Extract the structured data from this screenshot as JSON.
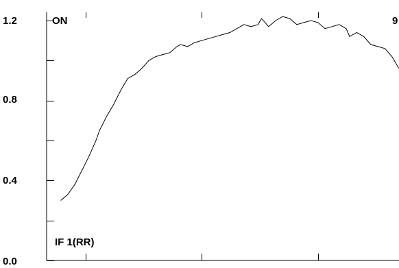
{
  "chart_data": {
    "type": "line",
    "title": "",
    "xlabel": "",
    "ylabel": "",
    "ylim": [
      0.0,
      1.2
    ],
    "y_ticks": [
      {
        "value": 0.0,
        "label": "0.0"
      },
      {
        "value": 0.4,
        "label": "0.4"
      },
      {
        "value": 0.8,
        "label": "0.8"
      },
      {
        "value": 1.2,
        "label": "1.2"
      }
    ],
    "y_minor_ticks": [
      0.2,
      0.6,
      1.0
    ],
    "x_ticks": [
      0.11,
      0.44,
      0.77
    ],
    "xlim": [
      0,
      1
    ],
    "grid": false,
    "annotations": {
      "top_left": "ON",
      "bottom_left": "IF 1(RR)",
      "top_right": "9"
    },
    "series": [
      {
        "values": [
          [
            0.04,
            0.3
          ],
          [
            0.06,
            0.33
          ],
          [
            0.08,
            0.38
          ],
          [
            0.1,
            0.45
          ],
          [
            0.12,
            0.52
          ],
          [
            0.14,
            0.6
          ],
          [
            0.15,
            0.65
          ],
          [
            0.17,
            0.72
          ],
          [
            0.19,
            0.78
          ],
          [
            0.21,
            0.85
          ],
          [
            0.23,
            0.91
          ],
          [
            0.25,
            0.93
          ],
          [
            0.27,
            0.96
          ],
          [
            0.29,
            1.0
          ],
          [
            0.31,
            1.02
          ],
          [
            0.33,
            1.03
          ],
          [
            0.35,
            1.04
          ],
          [
            0.37,
            1.07
          ],
          [
            0.38,
            1.08
          ],
          [
            0.4,
            1.07
          ],
          [
            0.42,
            1.09
          ],
          [
            0.44,
            1.1
          ],
          [
            0.46,
            1.11
          ],
          [
            0.48,
            1.12
          ],
          [
            0.5,
            1.13
          ],
          [
            0.52,
            1.14
          ],
          [
            0.54,
            1.16
          ],
          [
            0.56,
            1.18
          ],
          [
            0.58,
            1.17
          ],
          [
            0.6,
            1.18
          ],
          [
            0.61,
            1.21
          ],
          [
            0.63,
            1.17
          ],
          [
            0.65,
            1.2
          ],
          [
            0.67,
            1.22
          ],
          [
            0.69,
            1.21
          ],
          [
            0.71,
            1.18
          ],
          [
            0.73,
            1.19
          ],
          [
            0.75,
            1.2
          ],
          [
            0.77,
            1.19
          ],
          [
            0.79,
            1.16
          ],
          [
            0.81,
            1.17
          ],
          [
            0.83,
            1.18
          ],
          [
            0.85,
            1.16
          ],
          [
            0.86,
            1.12
          ],
          [
            0.88,
            1.14
          ],
          [
            0.9,
            1.12
          ],
          [
            0.92,
            1.08
          ],
          [
            0.94,
            1.07
          ],
          [
            0.96,
            1.06
          ],
          [
            0.98,
            1.02
          ],
          [
            1.0,
            0.96
          ]
        ]
      }
    ]
  }
}
